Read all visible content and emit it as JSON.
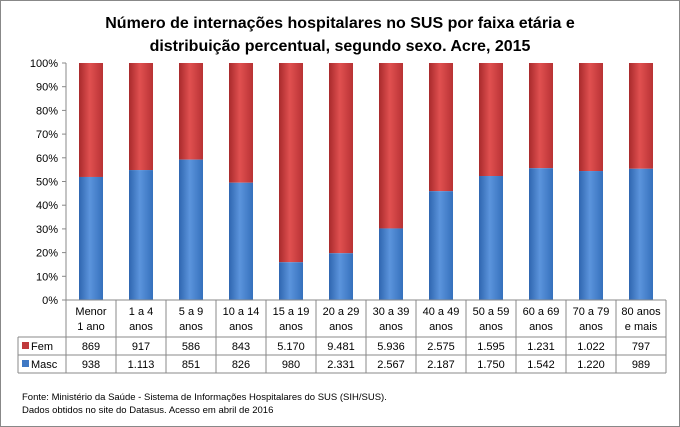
{
  "chart_data": {
    "type": "bar",
    "stacked": "percent",
    "title": [
      "Número de internações hospitalares no SUS por faixa etária e",
      "distribuição percentual, segundo sexo. Acre, 2015"
    ],
    "categories": [
      [
        "Menor",
        "1 ano"
      ],
      [
        "1 a 4",
        "anos"
      ],
      [
        "5 a 9",
        "anos"
      ],
      [
        "10 a 14",
        "anos"
      ],
      [
        "15 a 19",
        "anos"
      ],
      [
        "20 a 29",
        "anos"
      ],
      [
        "30 a 39",
        "anos"
      ],
      [
        "40 a 49",
        "anos"
      ],
      [
        "50 a 59",
        "anos"
      ],
      [
        "60 a 69",
        "anos"
      ],
      [
        "70 a 79",
        "anos"
      ],
      [
        "80 anos",
        "e mais"
      ]
    ],
    "series": [
      {
        "name": "Fem",
        "color": "#c0393b",
        "values": [
          869,
          917,
          586,
          843,
          5170,
          9481,
          5936,
          2575,
          1595,
          1231,
          1022,
          797
        ],
        "labels": [
          "869",
          "917",
          "586",
          "843",
          "5.170",
          "9.481",
          "5.936",
          "2.575",
          "1.595",
          "1.231",
          "1.022",
          "797"
        ]
      },
      {
        "name": "Masc",
        "color": "#3f78c4",
        "values": [
          938,
          1113,
          851,
          826,
          980,
          2331,
          2567,
          2187,
          1750,
          1542,
          1220,
          989
        ],
        "labels": [
          "938",
          "1.113",
          "851",
          "826",
          "980",
          "2.331",
          "2.567",
          "2.187",
          "1.750",
          "1.542",
          "1.220",
          "989"
        ]
      }
    ],
    "yticks": [
      "0%",
      "10%",
      "20%",
      "30%",
      "40%",
      "50%",
      "60%",
      "70%",
      "80%",
      "90%",
      "100%"
    ],
    "ylim": [
      0,
      100
    ],
    "grid": false,
    "legend": "data-table"
  },
  "source": [
    "Fonte: Ministério da Saúde - Sistema de Informações Hospitalares do SUS (SIH/SUS).",
    "Dados obtidos no site do Datasus. Acesso em abril de 2016"
  ]
}
